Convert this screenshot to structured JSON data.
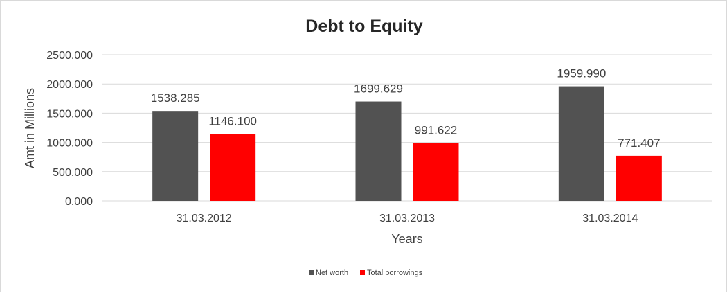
{
  "chart_data": {
    "type": "bar",
    "title": "Debt to Equity",
    "xlabel": "Years",
    "ylabel": "Amt in Millions",
    "categories": [
      "31.03.2012",
      "31.03.2013",
      "31.03.2014"
    ],
    "series": [
      {
        "name": "Net worth",
        "color": "#525252",
        "values": [
          1538.285,
          1699.629,
          1959.99
        ]
      },
      {
        "name": "Total borrowings",
        "color": "#ff0000",
        "values": [
          1146.1,
          991.622,
          771.407
        ]
      }
    ],
    "ylim": [
      0,
      2500
    ],
    "yticks": [
      0,
      500,
      1000,
      1500,
      2000,
      2500
    ],
    "ytick_labels": [
      "0.000",
      "500.000",
      "1000.000",
      "1500.000",
      "2000.000",
      "2500.000"
    ],
    "value_labels": [
      [
        "1538.285",
        "1699.629",
        "1959.990"
      ],
      [
        "1146.100",
        "991.622",
        "771.407"
      ]
    ],
    "grid": true,
    "legend_position": "bottom"
  }
}
